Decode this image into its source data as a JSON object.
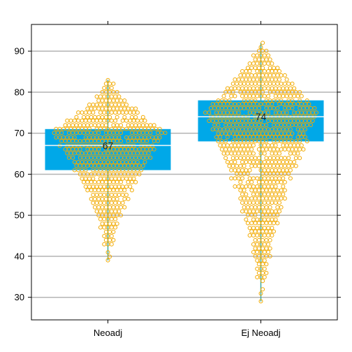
{
  "chart_data": {
    "type": "box-beeswarm",
    "title": "",
    "xlabel": "",
    "ylabel": "",
    "categories": [
      "Neoadj",
      "Ej Neoadj"
    ],
    "ylim": [
      24.5,
      96.5
    ],
    "yticks": [
      30,
      40,
      50,
      60,
      70,
      80,
      90
    ],
    "grid": true,
    "groups": [
      {
        "name": "Neoadj",
        "q1": 61,
        "median": 67,
        "q3": 71,
        "median_label": "67",
        "min": 39,
        "max": 83,
        "peak": 70
      },
      {
        "name": "Ej Neoadj",
        "q1": 68,
        "median": 74,
        "q3": 78,
        "median_label": "74",
        "min": 29,
        "max": 92,
        "peak": 75
      }
    ],
    "colors": {
      "box": "#00a8e8",
      "points": "#f2aa00",
      "median_line": "#e8f4fa",
      "whisker": "#3fa79a",
      "grid": "#b4b4b4",
      "frame": "#000000"
    }
  }
}
